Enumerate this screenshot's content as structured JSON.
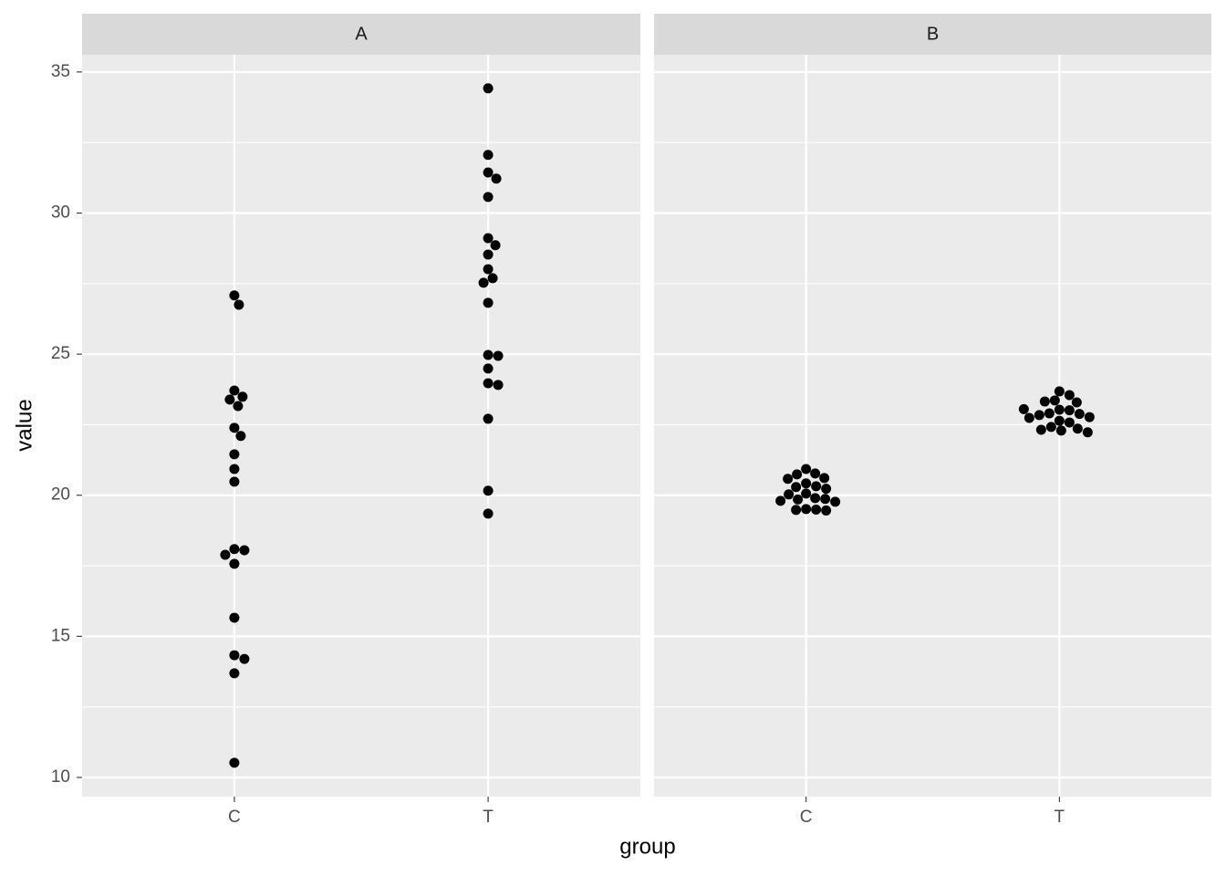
{
  "chart_data": {
    "type": "beeswarm",
    "xlabel": "group",
    "ylabel": "value",
    "categories": [
      "C",
      "T"
    ],
    "ylim": [
      9.32,
      35.61
    ],
    "yticks": [
      10,
      15,
      20,
      25,
      30,
      35
    ],
    "grid": true,
    "color": "#000000",
    "facets": [
      {
        "title": "A",
        "values": [
          [
            27.08,
            26.75,
            23.71,
            23.49,
            23.39,
            23.16,
            22.39,
            22.1,
            21.45,
            20.93,
            20.48,
            18.09,
            18.05,
            17.89,
            17.57,
            15.66,
            14.33,
            14.2,
            13.69,
            10.52
          ],
          [
            34.42,
            32.06,
            31.44,
            31.22,
            30.57,
            29.11,
            28.86,
            28.53,
            28.01,
            27.69,
            27.53,
            26.82,
            24.97,
            24.94,
            24.49,
            23.97,
            23.91,
            22.71,
            20.16,
            19.35
          ]
        ]
      },
      {
        "title": "B",
        "values": [
          [
            20.93,
            20.77,
            20.74,
            20.61,
            20.58,
            20.42,
            20.32,
            20.29,
            20.23,
            20.06,
            20.03,
            19.9,
            19.87,
            19.85,
            19.8,
            19.77,
            19.51,
            19.49,
            19.48,
            19.46
          ],
          [
            23.68,
            23.55,
            23.36,
            23.32,
            23.29,
            23.03,
            23.01,
            22.9,
            22.88,
            22.84,
            22.77,
            22.74,
            22.64,
            22.58,
            22.42,
            22.36,
            22.32,
            22.29,
            22.23,
            23.05
          ]
        ]
      }
    ]
  }
}
